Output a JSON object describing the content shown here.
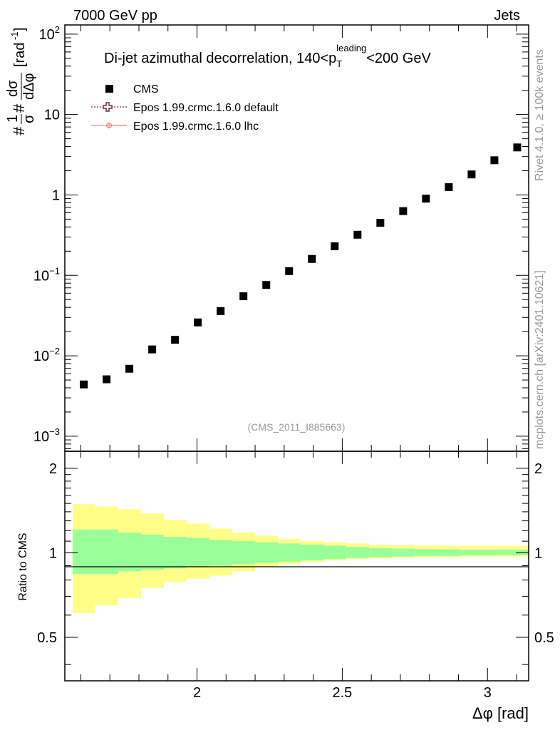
{
  "header": {
    "left": "7000 GeV pp",
    "right": "Jets"
  },
  "side_labels": {
    "top": "Rivet 4.1.0, ≥ 100k events",
    "bottom": "mcplots.cern.ch [arXiv:2401.10621]"
  },
  "chart_data": {
    "type": "scatter",
    "title_main": "Di-jet azimuthal decorrelation, 140<p",
    "title_sub": "T",
    "title_sup": "leading",
    "title_tail": "<200 GeV",
    "ylabel_upper": "#1/σ#dσ/dΔφ [rad⁻¹]",
    "ylabel_parts": {
      "hash1": "#",
      "frac1_num": "1",
      "frac1_den": "σ",
      "hash2": "#",
      "frac2_num": "dσ",
      "frac2_den": "dΔφ",
      "unit": "[rad",
      "unit_sup": "-1",
      "unit_close": "]"
    },
    "ylabel_ratio": "Ratio to CMS",
    "xlabel": "Δφ [rad]",
    "xlim": [
      1.545,
      3.1416
    ],
    "ylim_upper": [
      0.00065,
      130
    ],
    "ylim_ratio": [
      0.35,
      2.3
    ],
    "yscale_upper": "log",
    "yscale_ratio": "log",
    "x_ticks": [
      "2",
      "2.5",
      "3"
    ],
    "x_tick_values": [
      2,
      2.5,
      3
    ],
    "y_ticks_upper": [
      {
        "value": 100,
        "base": "10",
        "exp": "2"
      },
      {
        "value": 10,
        "base": "10",
        "exp": ""
      },
      {
        "value": 1,
        "base": "1",
        "exp": ""
      },
      {
        "value": 0.1,
        "base": "10",
        "exp": "−1"
      },
      {
        "value": 0.01,
        "base": "10",
        "exp": "−2"
      },
      {
        "value": 0.001,
        "base": "10",
        "exp": "−3"
      }
    ],
    "y_ticks_ratio": [
      {
        "value": 2,
        "label": "2"
      },
      {
        "value": 1,
        "label": "1"
      },
      {
        "value": 0.5,
        "label": "0.5"
      }
    ],
    "legend": [
      {
        "name": "CMS",
        "marker": "square",
        "color": "#000000"
      },
      {
        "name": "Epos 1.99.crmc.1.6.0 default",
        "marker": "open-cross",
        "color": "#7a1f3d"
      },
      {
        "name": "Epos 1.99.crmc.1.6.0 lhc",
        "marker": "circle-line",
        "color": "#f08080"
      }
    ],
    "watermark": "(CMS_2011_I885663)",
    "series": [
      {
        "name": "CMS",
        "x": [
          1.6101,
          1.6886,
          1.7671,
          1.8457,
          1.9242,
          2.0027,
          2.0813,
          2.1598,
          2.2384,
          2.3169,
          2.3954,
          2.474,
          2.5525,
          2.6311,
          2.7096,
          2.7881,
          2.8667,
          2.9452,
          3.0237,
          3.1023
        ],
        "values": [
          0.0044,
          0.0051,
          0.0069,
          0.012,
          0.0158,
          0.026,
          0.036,
          0.055,
          0.076,
          0.113,
          0.16,
          0.23,
          0.32,
          0.45,
          0.63,
          0.9,
          1.25,
          1.8,
          2.7,
          3.9
        ]
      }
    ],
    "ratio_bands": {
      "bin_edges": [
        1.5708,
        1.6493,
        1.7279,
        1.8064,
        1.885,
        1.9635,
        2.042,
        2.1206,
        2.1991,
        2.2777,
        2.3562,
        2.4347,
        2.5133,
        2.5918,
        2.6704,
        2.7489,
        2.8274,
        2.906,
        2.9845,
        3.0631,
        3.1416
      ],
      "stat_low": [
        0.84,
        0.84,
        0.86,
        0.87,
        0.88,
        0.89,
        0.9,
        0.91,
        0.92,
        0.93,
        0.94,
        0.95,
        0.96,
        0.965,
        0.97,
        0.975,
        0.975,
        0.98,
        0.98,
        0.98
      ],
      "stat_high": [
        1.21,
        1.21,
        1.18,
        1.16,
        1.14,
        1.13,
        1.11,
        1.1,
        1.09,
        1.08,
        1.07,
        1.06,
        1.05,
        1.04,
        1.035,
        1.03,
        1.03,
        1.025,
        1.025,
        1.025
      ],
      "tot_low": [
        0.61,
        0.65,
        0.69,
        0.75,
        0.79,
        0.81,
        0.83,
        0.86,
        0.89,
        0.91,
        0.93,
        0.94,
        0.95,
        0.955,
        0.96,
        0.965,
        0.965,
        0.97,
        0.97,
        0.97
      ],
      "tot_high": [
        1.49,
        1.46,
        1.43,
        1.38,
        1.31,
        1.27,
        1.22,
        1.18,
        1.15,
        1.12,
        1.1,
        1.09,
        1.08,
        1.07,
        1.065,
        1.06,
        1.06,
        1.06,
        1.06,
        1.06
      ]
    },
    "colors": {
      "total_band": "#ffff88",
      "stat_band": "#99ff99",
      "markers": "#000000",
      "watermark": "#999999",
      "side_text": "#999999"
    }
  }
}
